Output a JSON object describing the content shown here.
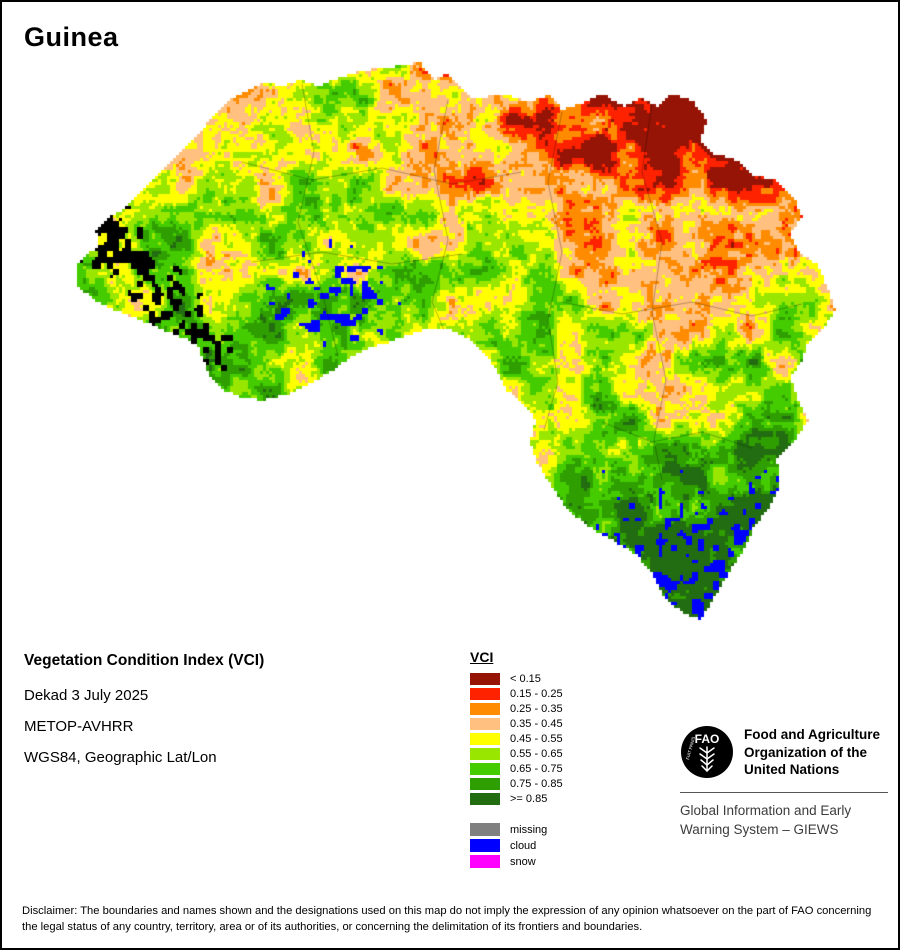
{
  "title": "Guinea",
  "info": {
    "product": "Vegetation Condition Index (VCI)",
    "dekad": "Dekad 3 July 2025",
    "sensor": "METOP-AVHRR",
    "projection": "WGS84, Geographic Lat/Lon"
  },
  "legend": {
    "title": "VCI",
    "classes": [
      {
        "label": "< 0.15",
        "color": "#961406"
      },
      {
        "label": "0.15 - 0.25",
        "color": "#ff2200"
      },
      {
        "label": "0.25 - 0.35",
        "color": "#ff8c00"
      },
      {
        "label": "0.35 - 0.45",
        "color": "#ffc080"
      },
      {
        "label": "0.45 - 0.55",
        "color": "#ffff00"
      },
      {
        "label": "0.55 - 0.65",
        "color": "#99e600"
      },
      {
        "label": "0.65 - 0.75",
        "color": "#44cc00"
      },
      {
        "label": "0.75 - 0.85",
        "color": "#2f9e00"
      },
      {
        "label": ">= 0.85",
        "color": "#226d11"
      }
    ],
    "extras": [
      {
        "label": "missing",
        "color": "#808080"
      },
      {
        "label": "cloud",
        "color": "#0000ff"
      },
      {
        "label": "snow",
        "color": "#ff00ff"
      }
    ]
  },
  "fao": {
    "logo": {
      "acronym": "FAO",
      "motto": "FIAT PANIS"
    },
    "org_name": "Food and Agriculture Organization of the United Nations",
    "program": "Global Information and Early Warning System – GIEWS"
  },
  "disclaimer": "Disclaimer: The boundaries and names shown and the designations used on this map do not imply the expression of any opinion whatsoever on the part of FAO concerning the legal status of any country, territory, area or of its authorities, or concerning the delimitation of its frontiers and boundaries."
}
